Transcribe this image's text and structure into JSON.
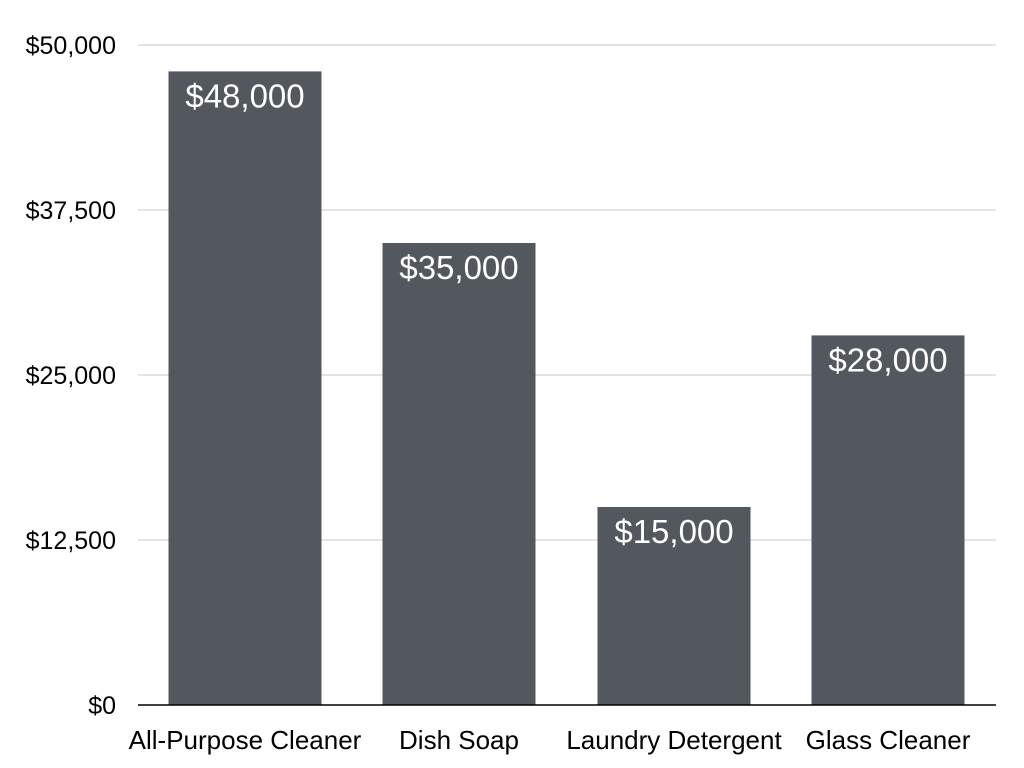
{
  "chart_data": {
    "type": "bar",
    "title": "",
    "xlabel": "",
    "ylabel": "",
    "categories": [
      "All-Purpose Cleaner",
      "Dish Soap",
      "Laundry Detergent",
      "Glass Cleaner"
    ],
    "values": [
      48000,
      35000,
      15000,
      28000
    ],
    "data_labels": [
      "$48,000",
      "$35,000",
      "$15,000",
      "$28,000"
    ],
    "ylim": [
      0,
      50000
    ],
    "yticks": [
      0,
      12500,
      25000,
      37500,
      50000
    ],
    "ytick_labels": [
      "$0",
      "$12,500",
      "$25,000",
      "$37,500",
      "$50,000"
    ],
    "grid": true,
    "legend": "none",
    "colors": {
      "bar": "#53575e",
      "data_label": "#ffffff",
      "grid": "#c8c8c8",
      "axis": "#000000"
    }
  }
}
